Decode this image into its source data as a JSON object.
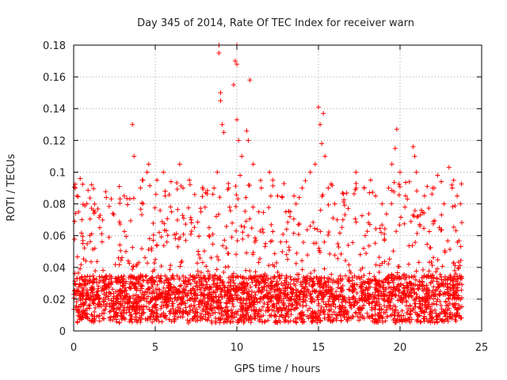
{
  "chart_data": {
    "type": "scatter",
    "title": "Day 345 of 2014, Rate Of TEC Index for receiver warn",
    "xlabel": "GPS time / hours",
    "ylabel": "ROTI / TECUs",
    "xlim": [
      0,
      25
    ],
    "ylim": [
      0,
      0.18
    ],
    "xticks": [
      0,
      5,
      10,
      15,
      20,
      25
    ],
    "xtick_labels": [
      "0",
      "5",
      "10",
      "15",
      "20",
      "25"
    ],
    "yticks": [
      0,
      0.02,
      0.04,
      0.06,
      0.08,
      0.1,
      0.12,
      0.14,
      0.16,
      0.18
    ],
    "ytick_labels": [
      "0",
      "0.02",
      "0.04",
      "0.06",
      "0.08",
      "0.1",
      "0.12",
      "0.14",
      "0.16",
      "0.18"
    ],
    "grid": true,
    "marker": "+",
    "color": "#ff0000",
    "series": [
      {
        "name": "ROTI",
        "x_range": [
          0,
          23.8
        ],
        "baseline_range": [
          0.005,
          0.035
        ],
        "points": [
          [
            0.1,
            0.09
          ],
          [
            0.2,
            0.085
          ],
          [
            0.3,
            0.075
          ],
          [
            0.4,
            0.096
          ],
          [
            0.5,
            0.07
          ],
          [
            0.8,
            0.08
          ],
          [
            1.1,
            0.092
          ],
          [
            1.3,
            0.075
          ],
          [
            1.6,
            0.065
          ],
          [
            2.0,
            0.084
          ],
          [
            2.4,
            0.074
          ],
          [
            2.8,
            0.091
          ],
          [
            3.1,
            0.085
          ],
          [
            3.6,
            0.13
          ],
          [
            3.7,
            0.11
          ],
          [
            4.2,
            0.095
          ],
          [
            4.5,
            0.1
          ],
          [
            4.6,
            0.105
          ],
          [
            5.1,
            0.095
          ],
          [
            5.5,
            0.1
          ],
          [
            5.6,
            0.085
          ],
          [
            6.0,
            0.075
          ],
          [
            6.5,
            0.105
          ],
          [
            6.7,
            0.09
          ],
          [
            7.2,
            0.07
          ],
          [
            7.8,
            0.075
          ],
          [
            8.3,
            0.065
          ],
          [
            8.6,
            0.09
          ],
          [
            8.8,
            0.1
          ],
          [
            8.9,
            0.18
          ],
          [
            8.9,
            0.175
          ],
          [
            9.0,
            0.15
          ],
          [
            9.0,
            0.145
          ],
          [
            9.1,
            0.13
          ],
          [
            9.2,
            0.125
          ],
          [
            9.5,
            0.09
          ],
          [
            9.8,
            0.155
          ],
          [
            9.9,
            0.17
          ],
          [
            10.0,
            0.18
          ],
          [
            10.0,
            0.168
          ],
          [
            10.0,
            0.133
          ],
          [
            10.1,
            0.12
          ],
          [
            10.2,
            0.098
          ],
          [
            10.3,
            0.11
          ],
          [
            10.6,
            0.126
          ],
          [
            10.7,
            0.12
          ],
          [
            10.8,
            0.158
          ],
          [
            11.0,
            0.105
          ],
          [
            11.5,
            0.09
          ],
          [
            12.0,
            0.1
          ],
          [
            12.2,
            0.095
          ],
          [
            12.5,
            0.085
          ],
          [
            13.0,
            0.075
          ],
          [
            13.5,
            0.085
          ],
          [
            14.0,
            0.09
          ],
          [
            14.5,
            0.1
          ],
          [
            14.8,
            0.105
          ],
          [
            15.0,
            0.141
          ],
          [
            15.1,
            0.13
          ],
          [
            15.2,
            0.118
          ],
          [
            15.3,
            0.137
          ],
          [
            15.4,
            0.11
          ],
          [
            15.6,
            0.09
          ],
          [
            16.0,
            0.08
          ],
          [
            16.5,
            0.07
          ],
          [
            17.3,
            0.1
          ],
          [
            17.8,
            0.09
          ],
          [
            18.2,
            0.095
          ],
          [
            18.5,
            0.085
          ],
          [
            18.9,
            0.08
          ],
          [
            19.3,
            0.09
          ],
          [
            19.5,
            0.105
          ],
          [
            19.7,
            0.115
          ],
          [
            19.8,
            0.127
          ],
          [
            20.0,
            0.1
          ],
          [
            20.3,
            0.078
          ],
          [
            20.8,
            0.116
          ],
          [
            20.9,
            0.11
          ],
          [
            21.0,
            0.1
          ],
          [
            21.5,
            0.085
          ],
          [
            22.0,
            0.09
          ],
          [
            22.3,
            0.098
          ],
          [
            22.7,
            0.08
          ],
          [
            23.0,
            0.103
          ],
          [
            23.2,
            0.09
          ],
          [
            23.5,
            0.085
          ],
          [
            23.7,
            0.08
          ]
        ]
      }
    ]
  }
}
